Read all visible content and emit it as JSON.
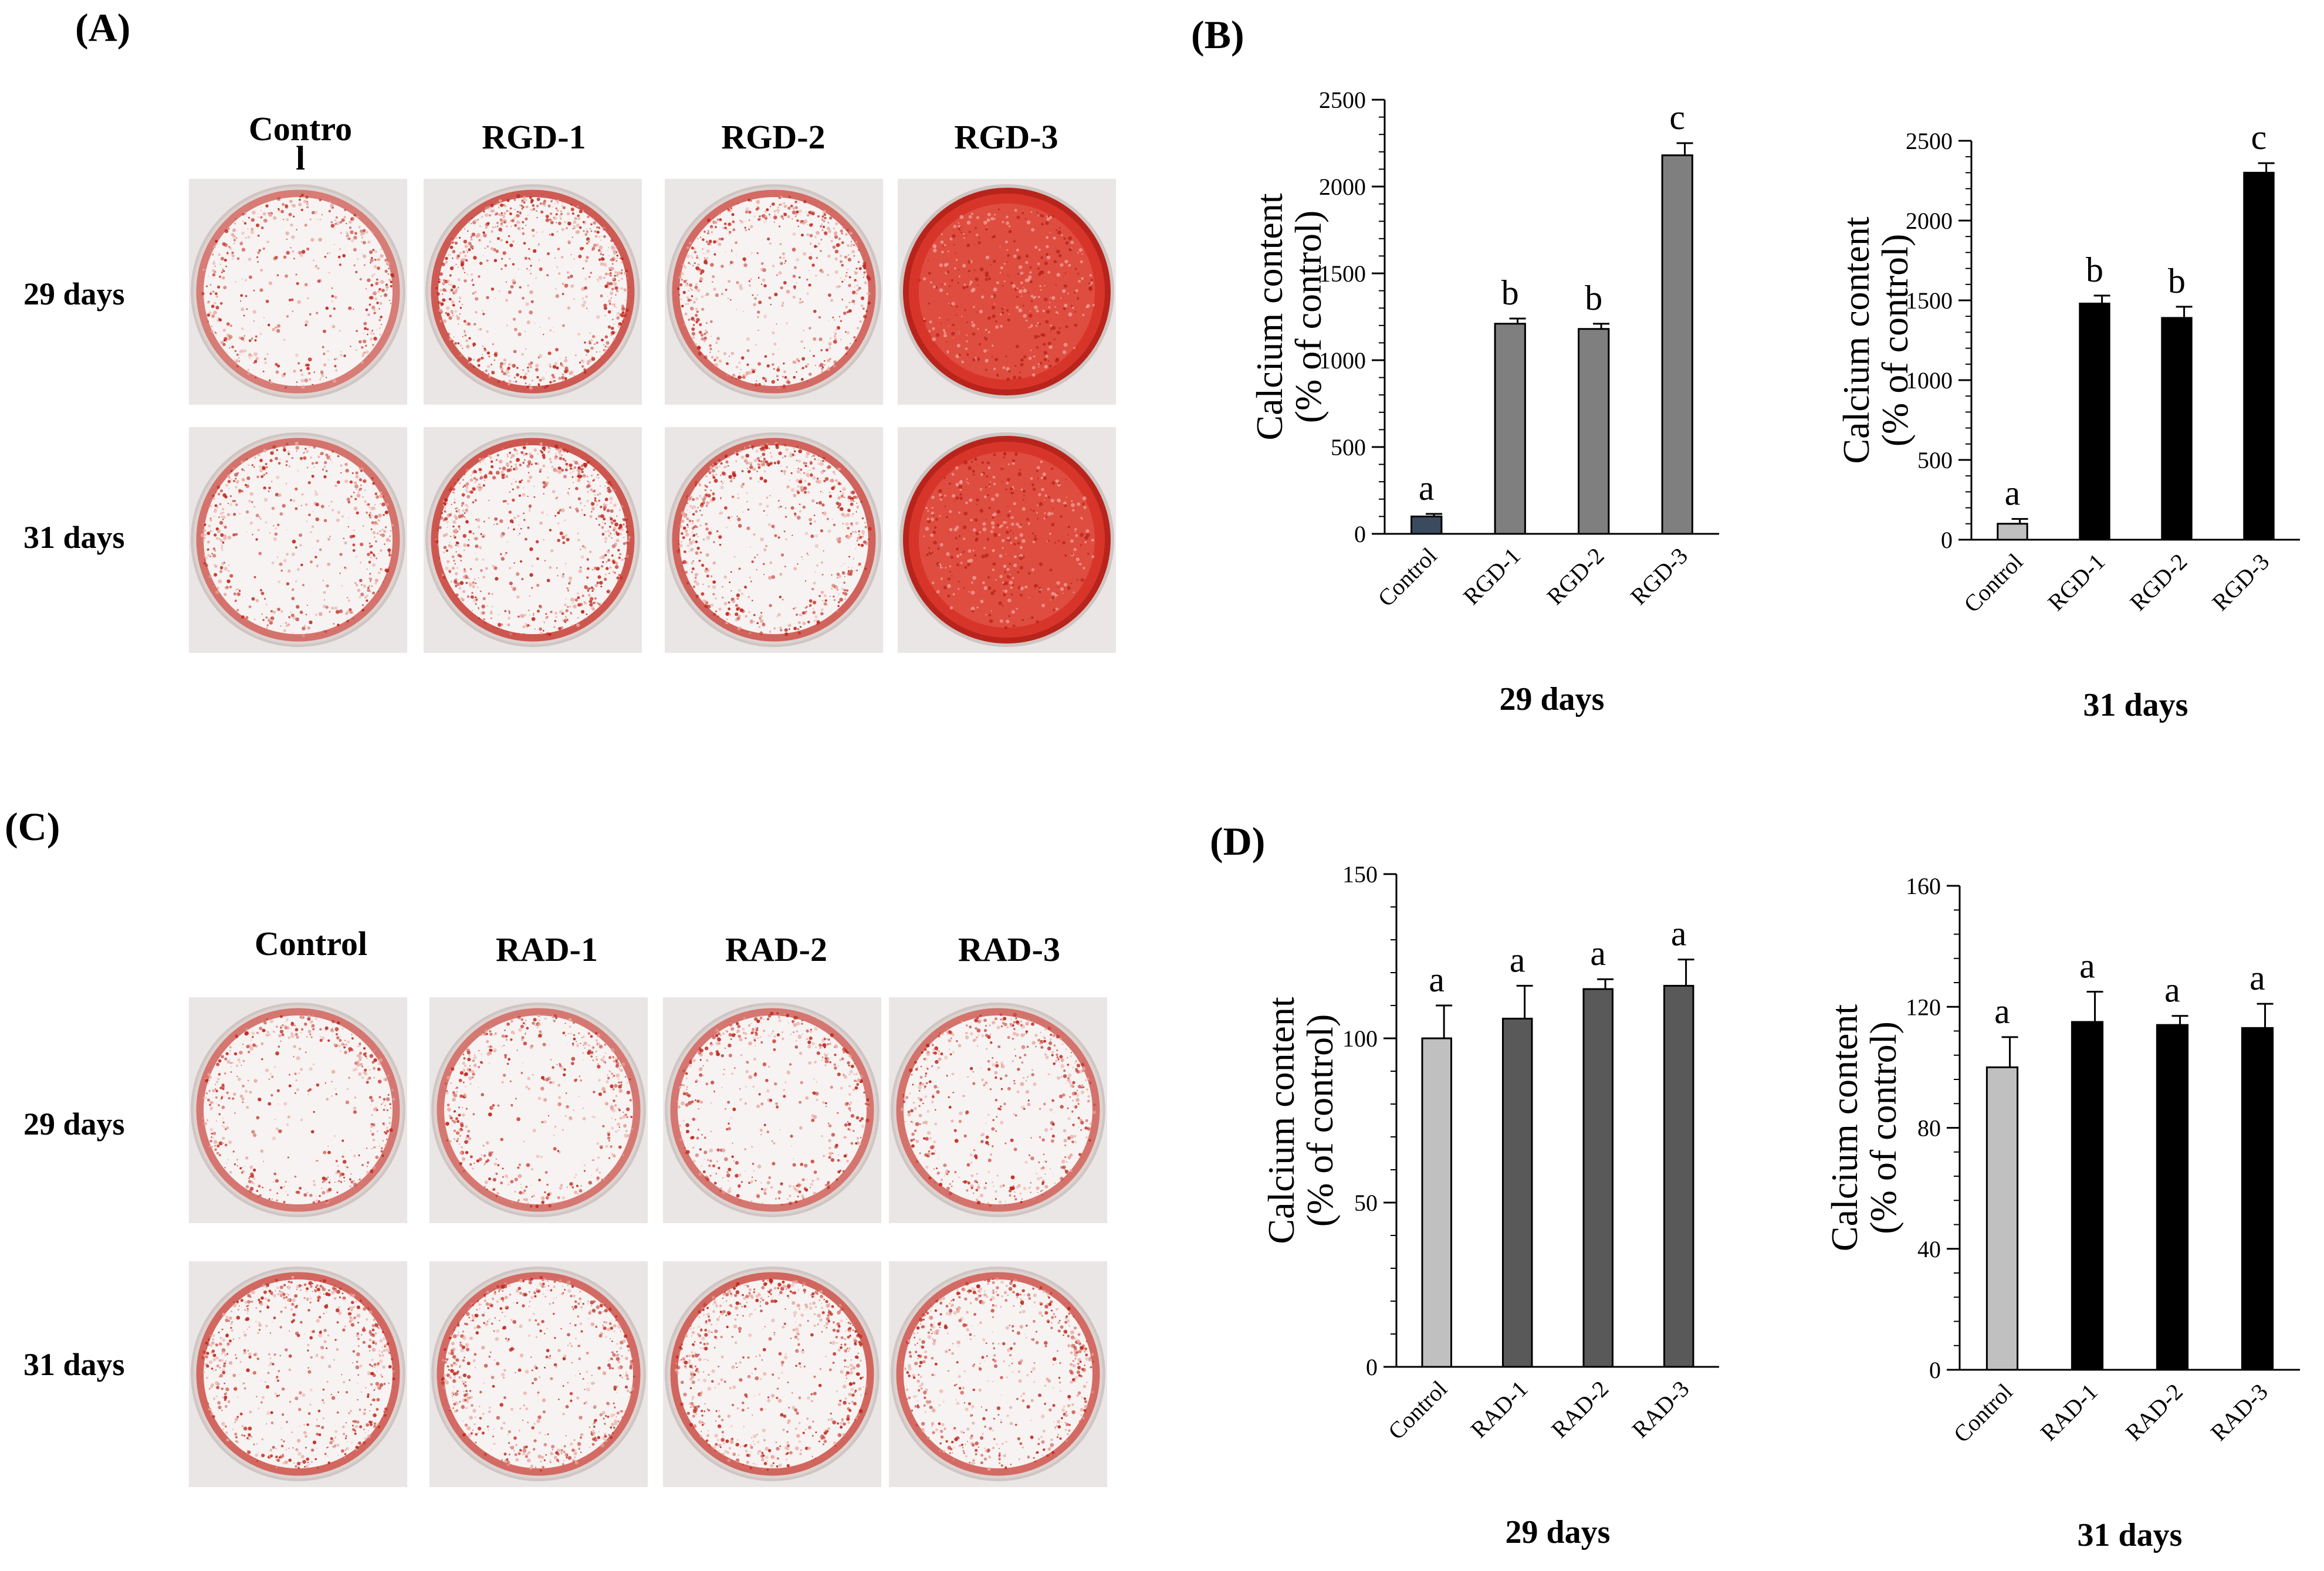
{
  "panels": {
    "A": {
      "label": "(A)",
      "columns": [
        "Contro\nl",
        "RGD-1",
        "RGD-2",
        "RGD-3"
      ],
      "rows": [
        "29 days",
        "31 days"
      ]
    },
    "B": {
      "label": "(B)"
    },
    "C": {
      "label": "(C)",
      "columns": [
        "Control",
        "RAD-1",
        "RAD-2",
        "RAD-3"
      ],
      "rows": [
        "29 days",
        "31 days"
      ]
    },
    "D": {
      "label": "(D)"
    }
  },
  "colors": {
    "stain_light": "#e8a8a0",
    "stain_dark": "#c0281e",
    "stain_full": "#d8352a",
    "bar_control_navy": "#3c4a60",
    "bar_gray": "#7f7f7f",
    "bar_black": "#000000",
    "bar_light_gray": "#c0c0c0",
    "bar_dark_gray": "#595959"
  },
  "chart_data": [
    {
      "id": "B1",
      "type": "bar",
      "categories": [
        "Control",
        "RGD-1",
        "RGD-2",
        "RGD-3"
      ],
      "values": [
        100,
        1210,
        1180,
        2180
      ],
      "errors": [
        15,
        30,
        30,
        70
      ],
      "letters": [
        "a",
        "b",
        "b",
        "c"
      ],
      "bar_colors": [
        "#3c4a60",
        "#7f7f7f",
        "#7f7f7f",
        "#7f7f7f"
      ],
      "ylabel_line1": "Calcium content",
      "ylabel_line2": "(% of control)",
      "yticks": [
        0,
        500,
        1000,
        1500,
        2000,
        2500
      ],
      "ylim": [
        0,
        2500
      ],
      "xlabel": "29 days"
    },
    {
      "id": "B2",
      "type": "bar",
      "categories": [
        "Control",
        "RGD-1",
        "RGD-2",
        "RGD-3"
      ],
      "values": [
        100,
        1480,
        1390,
        2300
      ],
      "errors": [
        30,
        50,
        70,
        60
      ],
      "letters": [
        "a",
        "b",
        "b",
        "c"
      ],
      "bar_colors": [
        "#c0c0c0",
        "#000000",
        "#000000",
        "#000000"
      ],
      "ylabel_line1": "Calcium content",
      "ylabel_line2": "(% of control)",
      "yticks": [
        0,
        500,
        1000,
        1500,
        2000,
        2500
      ],
      "ylim": [
        0,
        2500
      ],
      "xlabel": "31 days"
    },
    {
      "id": "D1",
      "type": "bar",
      "categories": [
        "Control",
        "RAD-1",
        "RAD-2",
        "RAD-3"
      ],
      "values": [
        100,
        106,
        115,
        116
      ],
      "errors": [
        10,
        10,
        3,
        8
      ],
      "letters": [
        "a",
        "a",
        "a",
        "a"
      ],
      "bar_colors": [
        "#c0c0c0",
        "#595959",
        "#595959",
        "#595959"
      ],
      "ylabel_line1": "Calcium content",
      "ylabel_line2": "(% of control)",
      "yticks": [
        0,
        50,
        100,
        150
      ],
      "ylim": [
        0,
        150
      ],
      "xlabel": "29 days"
    },
    {
      "id": "D2",
      "type": "bar",
      "categories": [
        "Control",
        "RAD-1",
        "RAD-2",
        "RAD-3"
      ],
      "values": [
        100,
        115,
        114,
        113
      ],
      "errors": [
        10,
        10,
        3,
        8
      ],
      "letters": [
        "a",
        "a",
        "a",
        "a"
      ],
      "bar_colors": [
        "#c0c0c0",
        "#000000",
        "#000000",
        "#000000"
      ],
      "ylabel_line1": "Calcium content",
      "ylabel_line2": "(% of control)",
      "yticks": [
        0,
        40,
        80,
        120,
        160
      ],
      "ylim": [
        0,
        160
      ],
      "xlabel": "31 days"
    }
  ]
}
